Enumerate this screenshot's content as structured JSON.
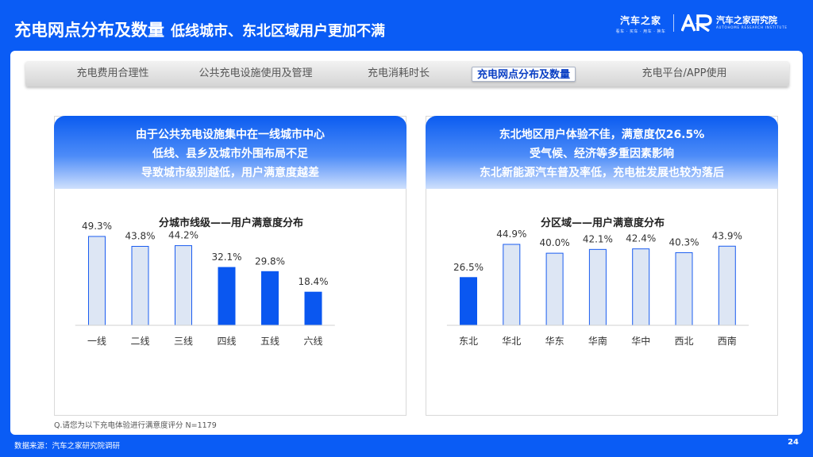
{
  "header": {
    "title_main": "充电网点分布及数量",
    "title_sub": "低线城市、东北区域用户更加不满",
    "logo_brand": "汽车之家",
    "logo_brand_tagline": "看车 · 买车 · 用车 · 换车",
    "logo_institute": "汽车之家研究院",
    "logo_institute_en": "AUTOHOME RESEARCH INSTITUTE"
  },
  "tabs": [
    {
      "label": "充电费用合理性",
      "active": false
    },
    {
      "label": "公共充电设施使用及管理",
      "active": false
    },
    {
      "label": "充电消耗时长",
      "active": false
    },
    {
      "label": "充电网点分布及数量",
      "active": true
    },
    {
      "label": "充电平台/APP使用",
      "active": false
    }
  ],
  "cards": [
    {
      "headline": [
        "由于公共充电设施集中在一线城市中心",
        "低线、县乡及城市外围布局不足",
        "导致城市级别越低，用户满意度越差"
      ],
      "chart_title": "分城市线级——用户满意度分布"
    },
    {
      "headline": [
        "东北地区用户体验不佳，满意度仅26.5%",
        "受气候、经济等多重因素影响",
        "东北新能源汽车普及率低，充电桩发展也较为落后"
      ],
      "chart_title": "分区域——用户满意度分布"
    }
  ],
  "colors": {
    "bg_blue": "#0a5cf5",
    "bar_light_fill": "#dde6f4",
    "bar_light_stroke": "#1a5cf0",
    "bar_dark": "#0a57f0"
  },
  "chart_data": [
    {
      "type": "bar",
      "title": "分城市线级——用户满意度分布",
      "categories": [
        "一线",
        "二线",
        "三线",
        "四线",
        "五线",
        "六线"
      ],
      "values": [
        49.3,
        43.8,
        44.2,
        32.1,
        29.8,
        18.4
      ],
      "labels": [
        "49.3%",
        "43.8%",
        "44.2%",
        "32.1%",
        "29.8%",
        "18.4%"
      ],
      "highlight": [
        false,
        false,
        false,
        true,
        true,
        true
      ],
      "unit": "%",
      "ylim": [
        0,
        50
      ]
    },
    {
      "type": "bar",
      "title": "分区域——用户满意度分布",
      "categories": [
        "东北",
        "华北",
        "华东",
        "华南",
        "华中",
        "西北",
        "西南"
      ],
      "values": [
        26.5,
        44.9,
        40.0,
        42.1,
        42.4,
        40.3,
        43.9
      ],
      "labels": [
        "26.5%",
        "44.9%",
        "40.0%",
        "42.1%",
        "42.4%",
        "40.3%",
        "43.9%"
      ],
      "highlight": [
        true,
        false,
        false,
        false,
        false,
        false,
        false
      ],
      "unit": "%",
      "ylim": [
        0,
        50
      ]
    }
  ],
  "note": "Q.请您为以下充电体验进行满意度评分 N=1179",
  "footer": {
    "source": "数据来源：汽车之家研究院调研",
    "page": "24"
  }
}
